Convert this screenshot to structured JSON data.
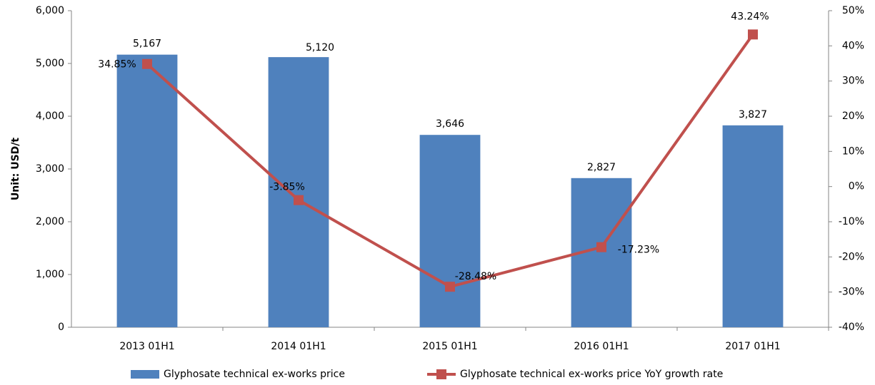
{
  "chart_data": {
    "type": "combo",
    "y_label": "Unit: USD/t",
    "categories": [
      "2013 01H1",
      "2014 01H1",
      "2015 01H1",
      "2016 01H1",
      "2017 01H1"
    ],
    "series": [
      {
        "name": "Glyphosate technical ex-works price",
        "type": "bar",
        "color": "#4f81bd",
        "values": [
          5167,
          5120,
          3646,
          2827,
          3827
        ],
        "value_labels": [
          "5,167",
          "5,120",
          "3,646",
          "2,827",
          "3,827"
        ]
      },
      {
        "name": "Glyphosate technical ex-works price YoY growth rate",
        "type": "line",
        "axis": "y2",
        "color": "#c0504d",
        "values": [
          34.85,
          -3.85,
          -28.48,
          -17.23,
          43.24
        ],
        "value_labels": [
          "34.85%",
          "-3.85%",
          "-28.48%",
          "-17.23%",
          "43.24%"
        ]
      }
    ],
    "ylim": [
      0,
      6000
    ],
    "yticks": [
      0,
      {
        "value": 1000,
        "label": "1,000"
      },
      {
        "value": 2000,
        "label": "2,000"
      },
      {
        "value": 3000,
        "label": "3,000"
      },
      {
        "value": 4000,
        "label": "4,000"
      },
      {
        "value": 5000,
        "label": "5,000"
      },
      {
        "value": 6000,
        "label": "6,000"
      }
    ],
    "y2lim": [
      -40,
      50
    ],
    "y2ticks": [
      {
        "value": -40,
        "label": "-40%"
      },
      {
        "value": -30,
        "label": "-30%"
      },
      {
        "value": -20,
        "label": "-20%"
      },
      {
        "value": -10,
        "label": "-10%"
      },
      {
        "value": 0,
        "label": "0%"
      },
      {
        "value": 10,
        "label": "10%"
      },
      {
        "value": 20,
        "label": "20%"
      },
      {
        "value": 30,
        "label": "30%"
      },
      {
        "value": 40,
        "label": "40%"
      },
      {
        "value": 50,
        "label": "50%"
      }
    ],
    "grid": false,
    "legend": "bottom"
  }
}
